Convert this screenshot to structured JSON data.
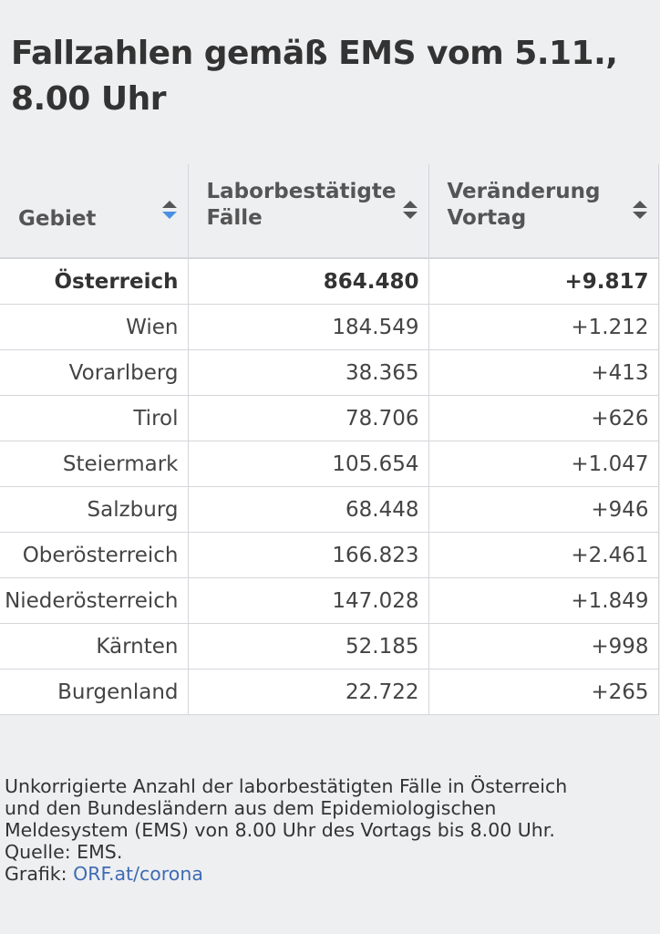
{
  "title": "Fallzahlen gemäß EMS vom 5.11., 8.00 Uhr",
  "table": {
    "headers": [
      {
        "label": "Gebiet",
        "sort": "descending"
      },
      {
        "label": "Laborbestätigte Fälle",
        "sort": "none"
      },
      {
        "label": "Veränderung Vortag",
        "sort": "none"
      }
    ],
    "rows": [
      {
        "region": "Österreich",
        "cases": "864.480",
        "change": "+9.817",
        "bold": true
      },
      {
        "region": "Wien",
        "cases": "184.549",
        "change": "+1.212"
      },
      {
        "region": "Vorarlberg",
        "cases": "38.365",
        "change": "+413"
      },
      {
        "region": "Tirol",
        "cases": "78.706",
        "change": "+626"
      },
      {
        "region": "Steiermark",
        "cases": "105.654",
        "change": "+1.047"
      },
      {
        "region": "Salzburg",
        "cases": "68.448",
        "change": "+946"
      },
      {
        "region": "Oberösterreich",
        "cases": "166.823",
        "change": "+2.461"
      },
      {
        "region": "Niederösterreich",
        "cases": "147.028",
        "change": "+1.849"
      },
      {
        "region": "Kärnten",
        "cases": "52.185",
        "change": "+998"
      },
      {
        "region": "Burgenland",
        "cases": "22.722",
        "change": "+265"
      }
    ]
  },
  "footnote": {
    "lines": [
      "Unkorrigierte Anzahl der laborbestätigten Fälle in Österreich",
      "und den Bundesländern aus dem Epidemiologischen",
      "Meldesystem (EMS) von 8.00 Uhr des Vortags bis 8.00 Uhr.",
      "Quelle: EMS."
    ],
    "credit_prefix": "Grafik: ",
    "credit_link": "ORF.at/corona"
  },
  "colors": {
    "background": "#eeeff1",
    "link": "#3e6bb3",
    "active_sort": "#4a90e2"
  }
}
